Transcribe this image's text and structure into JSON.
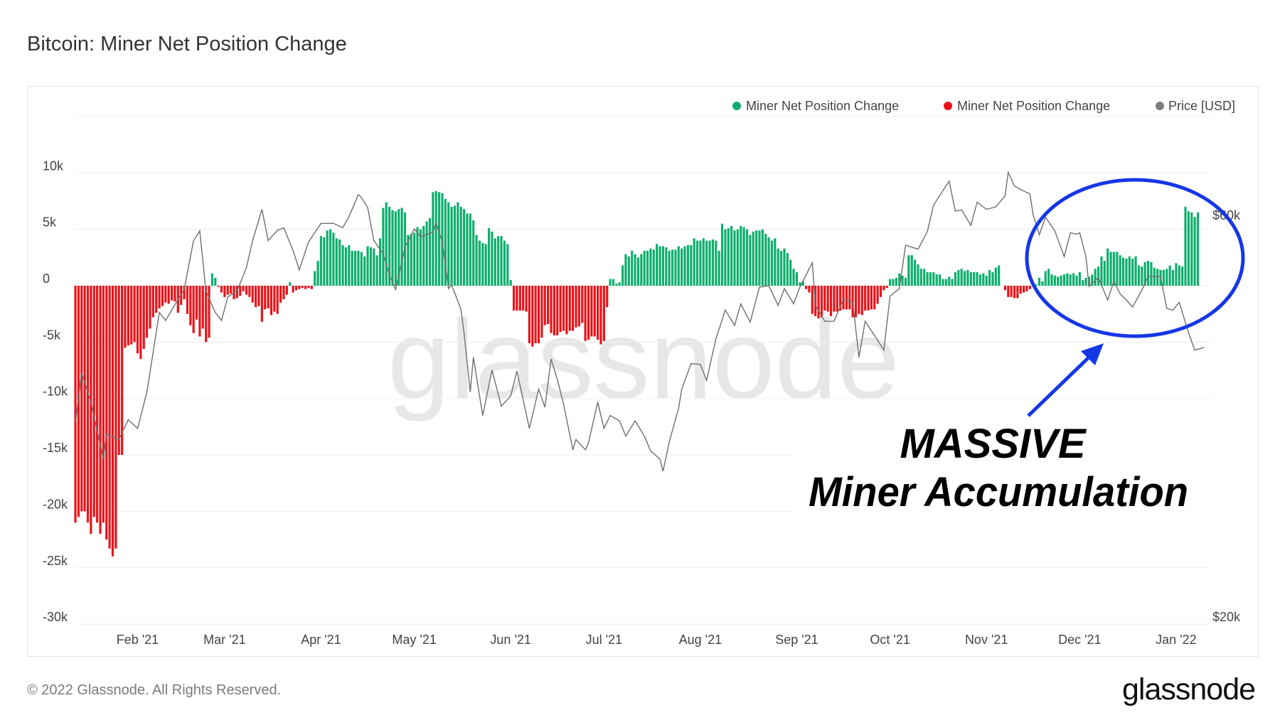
{
  "title": "Bitcoin: Miner Net Position Change",
  "footer": {
    "copyright": "© 2022 Glassnode. All Rights Reserved.",
    "logo": "glassnode"
  },
  "watermark": "glassnode",
  "annotation": {
    "line1": "MASSIVE",
    "line2": "Miner Accumulation",
    "color": "#1537e6"
  },
  "chart_data": {
    "type": "bar",
    "title": "Bitcoin: Miner Net Position Change",
    "x_range": [
      "2021-01-12",
      "2022-01-12"
    ],
    "x_tick_labels": [
      {
        "date": "2021-02-01",
        "label": "Feb '21"
      },
      {
        "date": "2021-03-01",
        "label": "Mar '21"
      },
      {
        "date": "2021-04-01",
        "label": "Apr '21"
      },
      {
        "date": "2021-05-01",
        "label": "May '21"
      },
      {
        "date": "2021-06-01",
        "label": "Jun '21"
      },
      {
        "date": "2021-07-01",
        "label": "Jul '21"
      },
      {
        "date": "2021-08-01",
        "label": "Aug '21"
      },
      {
        "date": "2021-09-01",
        "label": "Sep '21"
      },
      {
        "date": "2021-10-01",
        "label": "Oct '21"
      },
      {
        "date": "2021-11-01",
        "label": "Nov '21"
      },
      {
        "date": "2021-12-01",
        "label": "Dec '21"
      },
      {
        "date": "2022-01-01",
        "label": "Jan '22"
      }
    ],
    "ylim": [
      -30000,
      15000
    ],
    "y_ticks": [
      {
        "value": 10000,
        "label": "10k"
      },
      {
        "value": 5000,
        "label": "5k"
      },
      {
        "value": 0,
        "label": "0"
      },
      {
        "value": -5000,
        "label": "-5k"
      },
      {
        "value": -10000,
        "label": "-10k"
      },
      {
        "value": -15000,
        "label": "-15k"
      },
      {
        "value": -20000,
        "label": "-20k"
      },
      {
        "value": -25000,
        "label": "-25k"
      },
      {
        "value": -30000,
        "label": "-30k"
      }
    ],
    "y2_scale": "log",
    "y2_ticks": [
      {
        "value": 60000,
        "label": "$60k"
      },
      {
        "value": 20000,
        "label": "$20k"
      }
    ],
    "grid": true,
    "legend_position": "top-right",
    "legend": [
      {
        "name": "Miner Net Position Change",
        "color": "#0fae6e"
      },
      {
        "name": "Miner Net Position Change",
        "color": "#e8141a"
      },
      {
        "name": "Price [USD]",
        "color": "#7d7d7d"
      }
    ],
    "bars_daily_by_month": {
      "2021-01": [
        null,
        null,
        null,
        null,
        null,
        null,
        null,
        null,
        null,
        null,
        null,
        -21000,
        -20500,
        -20000,
        -20000,
        -21000,
        -22000,
        -20500,
        -21000,
        -22000,
        -21000,
        -22500,
        -23300,
        -24000,
        -23300,
        -15000,
        -15000,
        -5500,
        -5300,
        -5200,
        -5000
      ],
      "2021-02": [
        -6000,
        -6500,
        -5600,
        -4600,
        -3800,
        -2800,
        -2400,
        -2000,
        -1800,
        -1500,
        -1600,
        -1300,
        -1400,
        -2400,
        -1700,
        -1200,
        -2500,
        -3500,
        -4200,
        -3000,
        -4500,
        -3800,
        -5000,
        -4600,
        1100,
        700,
        -100,
        -600
      ],
      "2021-03": [
        -1000,
        -800,
        -700,
        -1200,
        -1100,
        -900,
        -500,
        -800,
        -1000,
        -1500,
        -1900,
        -1800,
        -3200,
        -2100,
        -2000,
        -2600,
        -2300,
        -2500,
        -1500,
        -1200,
        -800,
        300,
        -600,
        -400,
        -300,
        -200,
        -300,
        -200,
        -300,
        1300,
        2200
      ],
      "2021-04": [
        4400,
        4300,
        4900,
        5000,
        4700,
        4200,
        4100,
        3600,
        3400,
        3600,
        3100,
        3100,
        3100,
        3000,
        2600,
        3500,
        3400,
        3300,
        2700,
        4200,
        6900,
        7400,
        7000,
        6700,
        6600,
        6800,
        6900,
        6500,
        4500,
        4600
      ],
      "2021-05": [
        4700,
        5200,
        5000,
        5300,
        5700,
        6000,
        8300,
        8400,
        8300,
        8200,
        7700,
        7400,
        7000,
        7100,
        7400,
        7000,
        6800,
        6400,
        6400,
        5800,
        4500,
        4000,
        3800,
        3700,
        5100,
        4800,
        4200,
        4400,
        4400,
        4000,
        3700
      ],
      "2021-06": [
        500,
        -2200,
        -2200,
        -2200,
        -2200,
        -2300,
        -5100,
        -5400,
        -5100,
        -5100,
        -4600,
        -3500,
        -3400,
        -4200,
        -4400,
        -4400,
        -4100,
        -4000,
        -4300,
        -4000,
        -4000,
        -3700,
        -3600,
        -3300,
        -4900,
        -4800,
        -4500,
        -4500,
        -4800,
        -5200
      ],
      "2021-07": [
        -4900,
        -1900,
        600,
        600,
        200,
        300,
        1800,
        2800,
        2600,
        3100,
        2800,
        2500,
        2800,
        3100,
        3100,
        3300,
        3200,
        3700,
        3500,
        3500,
        3400,
        3100,
        3200,
        3200,
        3500,
        3300,
        3500,
        3600,
        3600,
        4200,
        4000
      ],
      "2021-08": [
        4000,
        4200,
        4000,
        4000,
        4100,
        4000,
        3100,
        5500,
        5000,
        5100,
        5300,
        4900,
        5000,
        5300,
        5200,
        5000,
        4500,
        4800,
        4900,
        4900,
        5000,
        4600,
        4300,
        4000,
        4200,
        3300,
        3100,
        3300,
        2900,
        2300,
        1500
      ],
      "2021-09": [
        1200,
        300,
        400,
        -300,
        -600,
        -2500,
        -2700,
        -2900,
        -2800,
        -2200,
        -2300,
        -2700,
        -2300,
        -2300,
        -2200,
        -2100,
        -2100,
        -2100,
        -2800,
        -2800,
        -2500,
        -2600,
        -2200,
        -2200,
        -2100,
        -2100,
        -1600,
        -1000,
        -400,
        -200
      ],
      "2021-10": [
        600,
        600,
        700,
        1100,
        900,
        700,
        2700,
        2700,
        2300,
        1900,
        1500,
        1500,
        1200,
        1200,
        1200,
        1000,
        1000,
        600,
        600,
        800,
        600,
        1200,
        1400,
        1500,
        1300,
        1400,
        1200,
        1200,
        1200,
        1000,
        1100
      ],
      "2021-11": [
        900,
        1400,
        1200,
        1600,
        1800,
        0,
        -400,
        -1000,
        -1000,
        -1100,
        -1100,
        -700,
        -600,
        -500,
        -300,
        0,
        100,
        700,
        400,
        1300,
        1500,
        1000,
        900,
        800,
        900,
        1000,
        1100,
        1000,
        1100,
        900
      ],
      "2021-12": [
        1200,
        500,
        700,
        800,
        1000,
        1500,
        1700,
        2600,
        2200,
        3300,
        3000,
        3000,
        3000,
        2700,
        2500,
        2400,
        2600,
        2400,
        2600,
        1800,
        1700,
        2100,
        2200,
        2100,
        1600,
        1500,
        1400,
        1400,
        1500,
        1800,
        1400
      ],
      "2022-01": [
        2000,
        1800,
        1700,
        7000,
        6600,
        6500,
        6100,
        6500
      ]
    },
    "price": [
      [
        "2021-01-12",
        34000
      ],
      [
        "2021-01-14",
        39000
      ],
      [
        "2021-01-17",
        36000
      ],
      [
        "2021-01-21",
        30800
      ],
      [
        "2021-01-22",
        33000
      ],
      [
        "2021-01-26",
        32500
      ],
      [
        "2021-01-29",
        34300
      ],
      [
        "2021-02-01",
        33500
      ],
      [
        "2021-02-04",
        37000
      ],
      [
        "2021-02-08",
        46000
      ],
      [
        "2021-02-10",
        45000
      ],
      [
        "2021-02-13",
        47000
      ],
      [
        "2021-02-16",
        49000
      ],
      [
        "2021-02-19",
        56000
      ],
      [
        "2021-02-21",
        57500
      ],
      [
        "2021-02-23",
        48800
      ],
      [
        "2021-02-26",
        46000
      ],
      [
        "2021-02-28",
        45000
      ],
      [
        "2021-03-02",
        48000
      ],
      [
        "2021-03-05",
        48800
      ],
      [
        "2021-03-08",
        52000
      ],
      [
        "2021-03-10",
        56000
      ],
      [
        "2021-03-13",
        61000
      ],
      [
        "2021-03-15",
        56000
      ],
      [
        "2021-03-18",
        57600
      ],
      [
        "2021-03-20",
        58000
      ],
      [
        "2021-03-23",
        54500
      ],
      [
        "2021-03-25",
        51700
      ],
      [
        "2021-03-28",
        55800
      ],
      [
        "2021-04-01",
        58700
      ],
      [
        "2021-04-05",
        58700
      ],
      [
        "2021-04-08",
        58000
      ],
      [
        "2021-04-10",
        59800
      ],
      [
        "2021-04-13",
        63500
      ],
      [
        "2021-04-14",
        63000
      ],
      [
        "2021-04-16",
        61300
      ],
      [
        "2021-04-18",
        56000
      ],
      [
        "2021-04-21",
        54000
      ],
      [
        "2021-04-23",
        51000
      ],
      [
        "2021-04-25",
        49000
      ],
      [
        "2021-04-28",
        55000
      ],
      [
        "2021-05-01",
        57800
      ],
      [
        "2021-05-03",
        56600
      ],
      [
        "2021-05-07",
        57300
      ],
      [
        "2021-05-08",
        58800
      ],
      [
        "2021-05-10",
        55800
      ],
      [
        "2021-05-12",
        49100
      ],
      [
        "2021-05-13",
        49600
      ],
      [
        "2021-05-16",
        46400
      ],
      [
        "2021-05-17",
        43500
      ],
      [
        "2021-05-19",
        37000
      ],
      [
        "2021-05-20",
        40700
      ],
      [
        "2021-05-23",
        34700
      ],
      [
        "2021-05-26",
        39300
      ],
      [
        "2021-05-29",
        35600
      ],
      [
        "2021-06-01",
        36600
      ],
      [
        "2021-06-03",
        39200
      ],
      [
        "2021-06-07",
        33500
      ],
      [
        "2021-06-10",
        37300
      ],
      [
        "2021-06-12",
        35500
      ],
      [
        "2021-06-14",
        40500
      ],
      [
        "2021-06-16",
        38300
      ],
      [
        "2021-06-18",
        35800
      ],
      [
        "2021-06-21",
        31600
      ],
      [
        "2021-06-22",
        32500
      ],
      [
        "2021-06-25",
        31600
      ],
      [
        "2021-06-26",
        32200
      ],
      [
        "2021-06-29",
        36000
      ],
      [
        "2021-07-01",
        33500
      ],
      [
        "2021-07-03",
        34700
      ],
      [
        "2021-07-06",
        34200
      ],
      [
        "2021-07-08",
        32800
      ],
      [
        "2021-07-11",
        34200
      ],
      [
        "2021-07-14",
        32800
      ],
      [
        "2021-07-16",
        31500
      ],
      [
        "2021-07-19",
        30800
      ],
      [
        "2021-07-20",
        29800
      ],
      [
        "2021-07-22",
        32300
      ],
      [
        "2021-07-25",
        35400
      ],
      [
        "2021-07-26",
        37300
      ],
      [
        "2021-07-29",
        40000
      ],
      [
        "2021-08-01",
        39900
      ],
      [
        "2021-08-03",
        38200
      ],
      [
        "2021-08-06",
        42800
      ],
      [
        "2021-08-09",
        46300
      ],
      [
        "2021-08-12",
        44400
      ],
      [
        "2021-08-14",
        47100
      ],
      [
        "2021-08-17",
        44800
      ],
      [
        "2021-08-20",
        49300
      ],
      [
        "2021-08-23",
        49500
      ],
      [
        "2021-08-26",
        46900
      ],
      [
        "2021-08-28",
        49100
      ],
      [
        "2021-08-31",
        47100
      ],
      [
        "2021-09-02",
        49300
      ],
      [
        "2021-09-06",
        52700
      ],
      [
        "2021-09-07",
        46900
      ],
      [
        "2021-09-10",
        44900
      ],
      [
        "2021-09-13",
        44900
      ],
      [
        "2021-09-16",
        47700
      ],
      [
        "2021-09-19",
        47300
      ],
      [
        "2021-09-21",
        40700
      ],
      [
        "2021-09-23",
        44900
      ],
      [
        "2021-09-26",
        43200
      ],
      [
        "2021-09-29",
        41500
      ],
      [
        "2021-10-01",
        48100
      ],
      [
        "2021-10-04",
        49100
      ],
      [
        "2021-10-06",
        55300
      ],
      [
        "2021-10-10",
        54700
      ],
      [
        "2021-10-13",
        57400
      ],
      [
        "2021-10-15",
        61700
      ],
      [
        "2021-10-20",
        65900
      ],
      [
        "2021-10-22",
        60700
      ],
      [
        "2021-10-24",
        60900
      ],
      [
        "2021-10-27",
        58400
      ],
      [
        "2021-10-29",
        62200
      ],
      [
        "2021-11-01",
        61000
      ],
      [
        "2021-11-04",
        61400
      ],
      [
        "2021-11-07",
        63300
      ],
      [
        "2021-11-08",
        67500
      ],
      [
        "2021-11-10",
        65000
      ],
      [
        "2021-11-12",
        64400
      ],
      [
        "2021-11-15",
        63600
      ],
      [
        "2021-11-16",
        60100
      ],
      [
        "2021-11-18",
        56900
      ],
      [
        "2021-11-20",
        59700
      ],
      [
        "2021-11-23",
        57500
      ],
      [
        "2021-11-26",
        53600
      ],
      [
        "2021-11-28",
        57200
      ],
      [
        "2021-11-30",
        57000
      ],
      [
        "2021-12-01",
        57200
      ],
      [
        "2021-12-03",
        53600
      ],
      [
        "2021-12-04",
        49400
      ],
      [
        "2021-12-07",
        50600
      ],
      [
        "2021-12-10",
        47600
      ],
      [
        "2021-12-12",
        50100
      ],
      [
        "2021-12-14",
        48400
      ],
      [
        "2021-12-16",
        47600
      ],
      [
        "2021-12-18",
        46700
      ],
      [
        "2021-12-21",
        48900
      ],
      [
        "2021-12-23",
        50800
      ],
      [
        "2021-12-27",
        50700
      ],
      [
        "2021-12-29",
        46500
      ],
      [
        "2021-12-31",
        46300
      ],
      [
        "2022-01-02",
        47300
      ],
      [
        "2022-01-05",
        43500
      ],
      [
        "2022-01-07",
        41500
      ],
      [
        "2022-01-10",
        41800
      ]
    ]
  }
}
